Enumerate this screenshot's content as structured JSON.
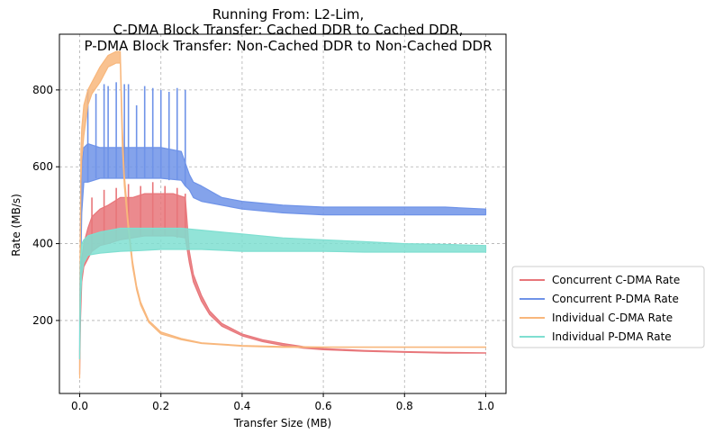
{
  "chart_data": {
    "type": "line",
    "title": [
      "Running From: L2-Lim,",
      "C-DMA Block Transfer: Cached DDR to Cached DDR,",
      "P-DMA Block Transfer: Non-Cached DDR to Non-Cached DDR"
    ],
    "xlabel": "Transfer Size (MB)",
    "ylabel": "Rate (MB/s)",
    "xlim": [
      -0.05,
      1.05
    ],
    "ylim": [
      10,
      945
    ],
    "xticks": [
      0.0,
      0.2,
      0.4,
      0.6,
      0.8,
      1.0
    ],
    "xtick_labels": [
      "0.0",
      "0.2",
      "0.4",
      "0.6",
      "0.8",
      "1.0"
    ],
    "yticks": [
      200,
      400,
      600,
      800
    ],
    "ytick_labels": [
      "200",
      "400",
      "600",
      "800"
    ],
    "grid": true,
    "legend_position": "outside-right-bottom",
    "series": [
      {
        "name": "Concurrent C-DMA Rate",
        "color": "#e8767a",
        "x": [
          0.0,
          0.002,
          0.005,
          0.01,
          0.02,
          0.03,
          0.05,
          0.07,
          0.1,
          0.13,
          0.16,
          0.2,
          0.23,
          0.26,
          0.27,
          0.28,
          0.3,
          0.32,
          0.35,
          0.4,
          0.45,
          0.5,
          0.55,
          0.6,
          0.7,
          0.8,
          0.9,
          1.0
        ],
        "low": [
          60,
          200,
          300,
          340,
          360,
          380,
          395,
          400,
          410,
          415,
          420,
          420,
          420,
          415,
          350,
          300,
          250,
          215,
          185,
          160,
          145,
          135,
          128,
          124,
          120,
          117,
          115,
          115
        ],
        "high": [
          120,
          280,
          360,
          400,
          440,
          470,
          490,
          500,
          520,
          520,
          530,
          530,
          530,
          520,
          380,
          320,
          265,
          225,
          192,
          165,
          150,
          140,
          132,
          127,
          122,
          119,
          117,
          116
        ],
        "spikes": [
          [
            0.03,
            520
          ],
          [
            0.06,
            540
          ],
          [
            0.09,
            545
          ],
          [
            0.12,
            555
          ],
          [
            0.15,
            550
          ],
          [
            0.18,
            560
          ],
          [
            0.21,
            550
          ],
          [
            0.24,
            545
          ],
          [
            0.26,
            530
          ]
        ]
      },
      {
        "name": "Concurrent P-DMA Rate",
        "color": "#6f93e8",
        "x": [
          0.0,
          0.002,
          0.005,
          0.01,
          0.02,
          0.05,
          0.1,
          0.15,
          0.2,
          0.25,
          0.26,
          0.27,
          0.28,
          0.3,
          0.35,
          0.4,
          0.5,
          0.6,
          0.7,
          0.8,
          0.9,
          1.0
        ],
        "low": [
          100,
          300,
          480,
          560,
          560,
          570,
          570,
          570,
          570,
          565,
          550,
          540,
          520,
          510,
          500,
          490,
          480,
          475,
          475,
          475,
          475,
          475
        ],
        "high": [
          200,
          450,
          600,
          650,
          660,
          650,
          650,
          650,
          650,
          640,
          610,
          580,
          560,
          550,
          520,
          510,
          500,
          495,
          495,
          495,
          495,
          490
        ],
        "spikes": [
          [
            0.02,
            800
          ],
          [
            0.04,
            790
          ],
          [
            0.06,
            815
          ],
          [
            0.07,
            810
          ],
          [
            0.09,
            820
          ],
          [
            0.11,
            815
          ],
          [
            0.12,
            815
          ],
          [
            0.14,
            760
          ],
          [
            0.16,
            810
          ],
          [
            0.18,
            805
          ],
          [
            0.2,
            800
          ],
          [
            0.22,
            795
          ],
          [
            0.24,
            805
          ],
          [
            0.26,
            800
          ]
        ]
      },
      {
        "name": "Individual C-DMA Rate",
        "color": "#f8b77c",
        "x": [
          0.0,
          0.001,
          0.003,
          0.005,
          0.01,
          0.02,
          0.03,
          0.05,
          0.07,
          0.09,
          0.1,
          0.105,
          0.11,
          0.12,
          0.13,
          0.14,
          0.15,
          0.17,
          0.2,
          0.25,
          0.3,
          0.4,
          0.5,
          0.6,
          0.8,
          1.0
        ],
        "low": [
          50,
          300,
          560,
          620,
          680,
          760,
          790,
          820,
          860,
          870,
          870,
          650,
          550,
          430,
          340,
          280,
          240,
          195,
          165,
          150,
          140,
          133,
          130,
          130,
          130,
          130
        ],
        "high": [
          90,
          380,
          640,
          700,
          760,
          800,
          820,
          860,
          890,
          900,
          900,
          700,
          580,
          450,
          355,
          290,
          248,
          200,
          170,
          153,
          142,
          135,
          132,
          131,
          131,
          131
        ]
      },
      {
        "name": "Individual P-DMA Rate",
        "color": "#7fdfd1",
        "x": [
          0.0,
          0.002,
          0.005,
          0.01,
          0.02,
          0.05,
          0.1,
          0.15,
          0.2,
          0.25,
          0.3,
          0.4,
          0.5,
          0.6,
          0.7,
          0.8,
          0.9,
          1.0
        ],
        "low": [
          100,
          250,
          320,
          350,
          370,
          375,
          380,
          382,
          385,
          385,
          385,
          380,
          380,
          380,
          378,
          378,
          378,
          378
        ],
        "high": [
          150,
          350,
          400,
          410,
          420,
          430,
          440,
          440,
          440,
          440,
          435,
          425,
          415,
          410,
          405,
          400,
          398,
          395
        ]
      }
    ]
  }
}
